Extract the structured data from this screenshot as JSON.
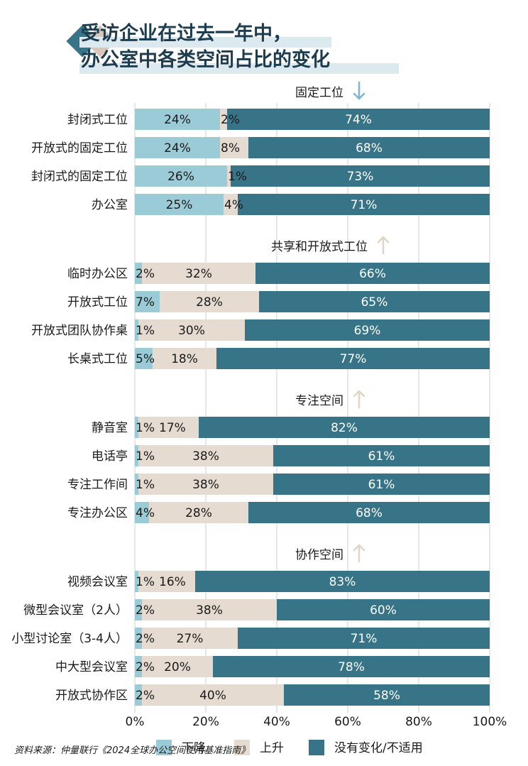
{
  "chart_data": {
    "type": "bar",
    "orientation": "horizontal",
    "stacked": true,
    "title_lines": [
      "受访企业在过去一年中，",
      "办公室中各类空间占比的变化"
    ],
    "xlim": [
      0,
      100
    ],
    "x_ticks": [
      "0%",
      "20%",
      "40%",
      "60%",
      "80%",
      "100%"
    ],
    "grid": true,
    "legend_position": "bottom",
    "series": [
      {
        "name": "下降",
        "color": "#9ccbd8"
      },
      {
        "name": "上升",
        "color": "#e6dbd1"
      },
      {
        "name": "没有变化/不适用",
        "color": "#387488"
      }
    ],
    "groups": [
      {
        "name": "固定工位",
        "direction": "down",
        "rows": [
          {
            "category": "封闭式工位",
            "values": [
              24,
              2,
              74
            ],
            "labels": [
              "24%",
              "2%",
              "74%"
            ]
          },
          {
            "category": "开放式的固定工位",
            "values": [
              24,
              8,
              68
            ],
            "labels": [
              "24%",
              "8%",
              "68%"
            ]
          },
          {
            "category": "封闭式的固定工位",
            "values": [
              26,
              1,
              73
            ],
            "labels": [
              "26%",
              "1%",
              "73%"
            ]
          },
          {
            "category": "办公室",
            "values": [
              25,
              4,
              71
            ],
            "labels": [
              "25%",
              "4%",
              "71%"
            ]
          }
        ]
      },
      {
        "name": "共享和开放式工位",
        "direction": "up",
        "rows": [
          {
            "category": "临时办公区",
            "values": [
              2,
              32,
              66
            ],
            "labels": [
              "2%",
              "32%",
              "66%"
            ]
          },
          {
            "category": "开放式工位",
            "values": [
              7,
              28,
              65
            ],
            "labels": [
              "7%",
              "28%",
              "65%"
            ]
          },
          {
            "category": "开放式团队协作桌",
            "values": [
              1,
              30,
              69
            ],
            "labels": [
              "1%",
              "30%",
              "69%"
            ]
          },
          {
            "category": "长桌式工位",
            "values": [
              5,
              18,
              77
            ],
            "labels": [
              "5%",
              "18%",
              "77%"
            ]
          }
        ]
      },
      {
        "name": "专注空间",
        "direction": "up",
        "rows": [
          {
            "category": "静音室",
            "values": [
              1,
              17,
              82
            ],
            "labels": [
              "1%",
              "17%",
              "82%"
            ]
          },
          {
            "category": "电话亭",
            "values": [
              1,
              38,
              61
            ],
            "labels": [
              "1%",
              "38%",
              "61%"
            ]
          },
          {
            "category": "专注工作间",
            "values": [
              1,
              38,
              61
            ],
            "labels": [
              "1%",
              "38%",
              "61%"
            ]
          },
          {
            "category": "专注办公区",
            "values": [
              4,
              28,
              68
            ],
            "labels": [
              "4%",
              "28%",
              "68%"
            ]
          }
        ]
      },
      {
        "name": "协作空间",
        "direction": "up",
        "rows": [
          {
            "category": "视频会议室",
            "values": [
              1,
              16,
              83
            ],
            "labels": [
              "1%",
              "16%",
              "83%"
            ]
          },
          {
            "category": "微型会议室（2人）",
            "values": [
              2,
              38,
              60
            ],
            "labels": [
              "2%",
              "38%",
              "60%"
            ]
          },
          {
            "category": "小型讨论室（3-4人）",
            "values": [
              2,
              27,
              71
            ],
            "labels": [
              "2%",
              "27%",
              "71%"
            ]
          },
          {
            "category": "中大型会议室",
            "values": [
              2,
              20,
              78
            ],
            "labels": [
              "2%",
              "20%",
              "78%"
            ]
          },
          {
            "category": "开放式协作区",
            "values": [
              2,
              40,
              58
            ],
            "labels": [
              "2%",
              "40%",
              "58%"
            ]
          }
        ]
      }
    ],
    "source": "资料来源：仲量联行《2024全球办公空间使用基准指南》"
  },
  "colors": {
    "title": "#1d3c4f",
    "title_highlight": "#dce9ee",
    "logo_dark": "#387488",
    "logo_light": "#d8c4b6",
    "arrow_down": "#7fb7cc",
    "arrow_up": "#e2d4c6",
    "grid": "#cfcfcf",
    "label_on_dark": "#ffffff",
    "label_on_light": "#1a1a1a"
  }
}
